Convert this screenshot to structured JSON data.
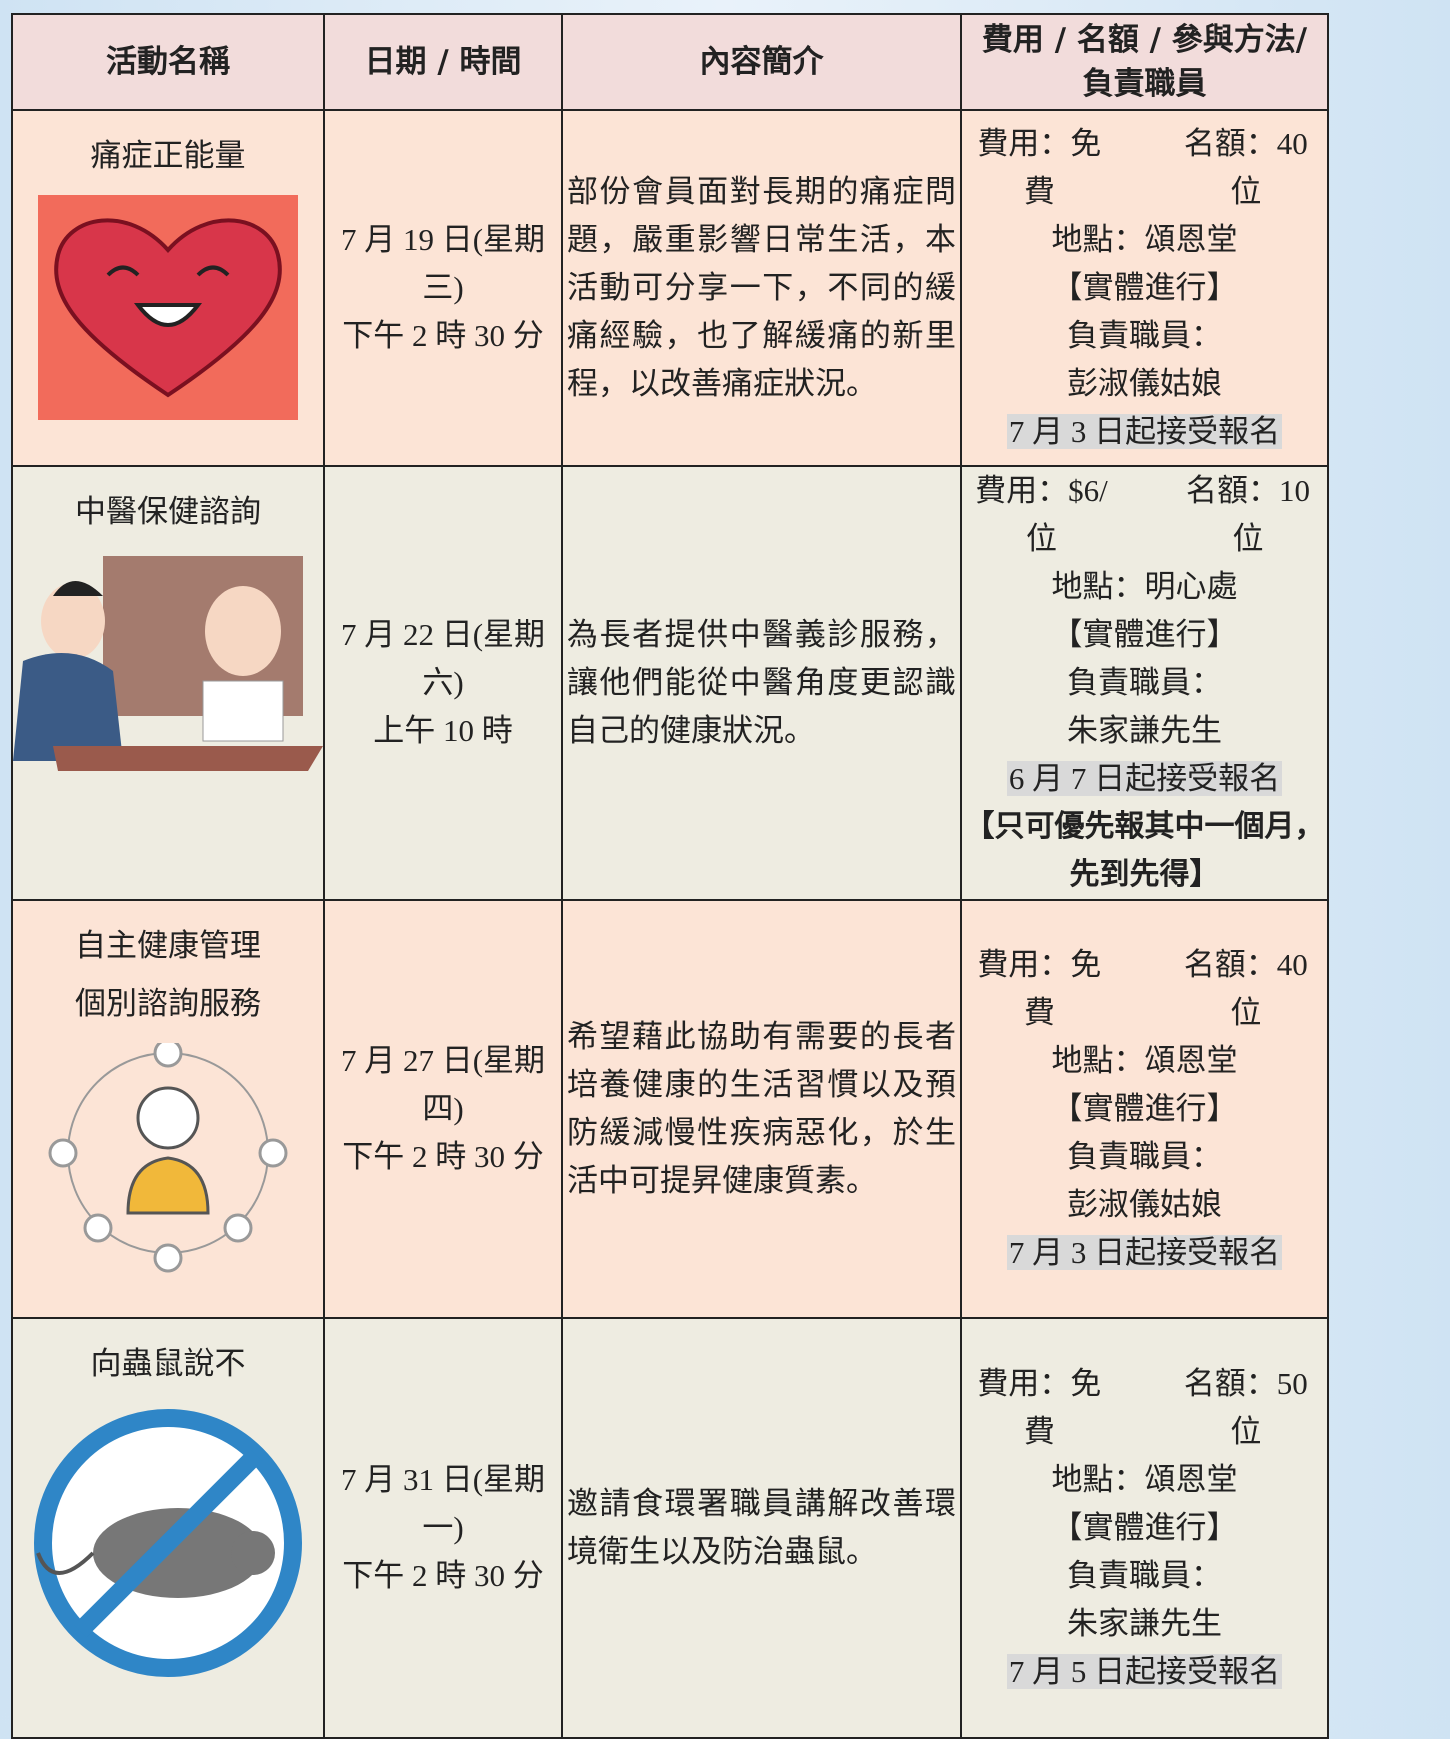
{
  "table": {
    "headers": [
      [
        "活動名稱"
      ],
      [
        "日期 / 時間"
      ],
      [
        "內容簡介"
      ],
      [
        "費用 / 名額 / 參與方法/",
        "負責職員"
      ]
    ],
    "rows": [
      {
        "name": [
          "痛症正能量"
        ],
        "date": [
          "7 月 19 日(星期三)",
          "下午 2 時 30 分"
        ],
        "description": "部份會員面對長期的痛症問題，嚴重影響日常生活，本活動可分享一下，不同的緩痛經驗，也了解緩痛的新里程，以改善痛症狀況。",
        "fee": "費用：免費",
        "quota": "名額：40 位",
        "lines": [
          "地點：頌恩堂",
          "【實體進行】",
          "負責職員：",
          "彭淑儀姑娘"
        ],
        "registration": "7 月 3 日起接受報名"
      },
      {
        "name": [
          "中醫保健諮詢"
        ],
        "date": [
          "7 月 22 日(星期六)",
          "上午 10 時"
        ],
        "description": "為長者提供中醫義診服務，讓他們能從中醫角度更認識自己的健康狀況。",
        "fee": "費用：$6/位",
        "quota": "名額：10 位",
        "lines": [
          "地點：明心處",
          "【實體進行】",
          "負責職員：",
          "朱家謙先生"
        ],
        "registration": "6 月 7 日起接受報名",
        "note": [
          "【只可優先報其中一個月，",
          "先到先得】"
        ]
      },
      {
        "name": [
          "自主健康管理",
          "個別諮詢服務"
        ],
        "date": [
          "7 月 27 日(星期四)",
          "下午 2 時 30 分"
        ],
        "description": "希望藉此協助有需要的長者培養健康的生活習慣以及預防緩減慢性疾病惡化，於生活中可提昇健康質素。",
        "fee": "費用：免費",
        "quota": "名額：40 位",
        "lines": [
          "地點：頌恩堂",
          "【實體進行】",
          "負責職員：",
          "彭淑儀姑娘"
        ],
        "registration": "7 月 3 日起接受報名"
      },
      {
        "name": [
          "向蟲鼠說不"
        ],
        "date": [
          "7 月 31 日(星期一)",
          "下午 2 時 30 分"
        ],
        "description": "邀請食環署職員講解改善環境衛生以及防治蟲鼠。",
        "fee": "費用：免費",
        "quota": "名額：50 位",
        "lines": [
          "地點：頌恩堂",
          "【實體進行】",
          "負責職員：",
          "朱家謙先生"
        ],
        "registration": "7 月 5 日起接受報名"
      }
    ]
  }
}
